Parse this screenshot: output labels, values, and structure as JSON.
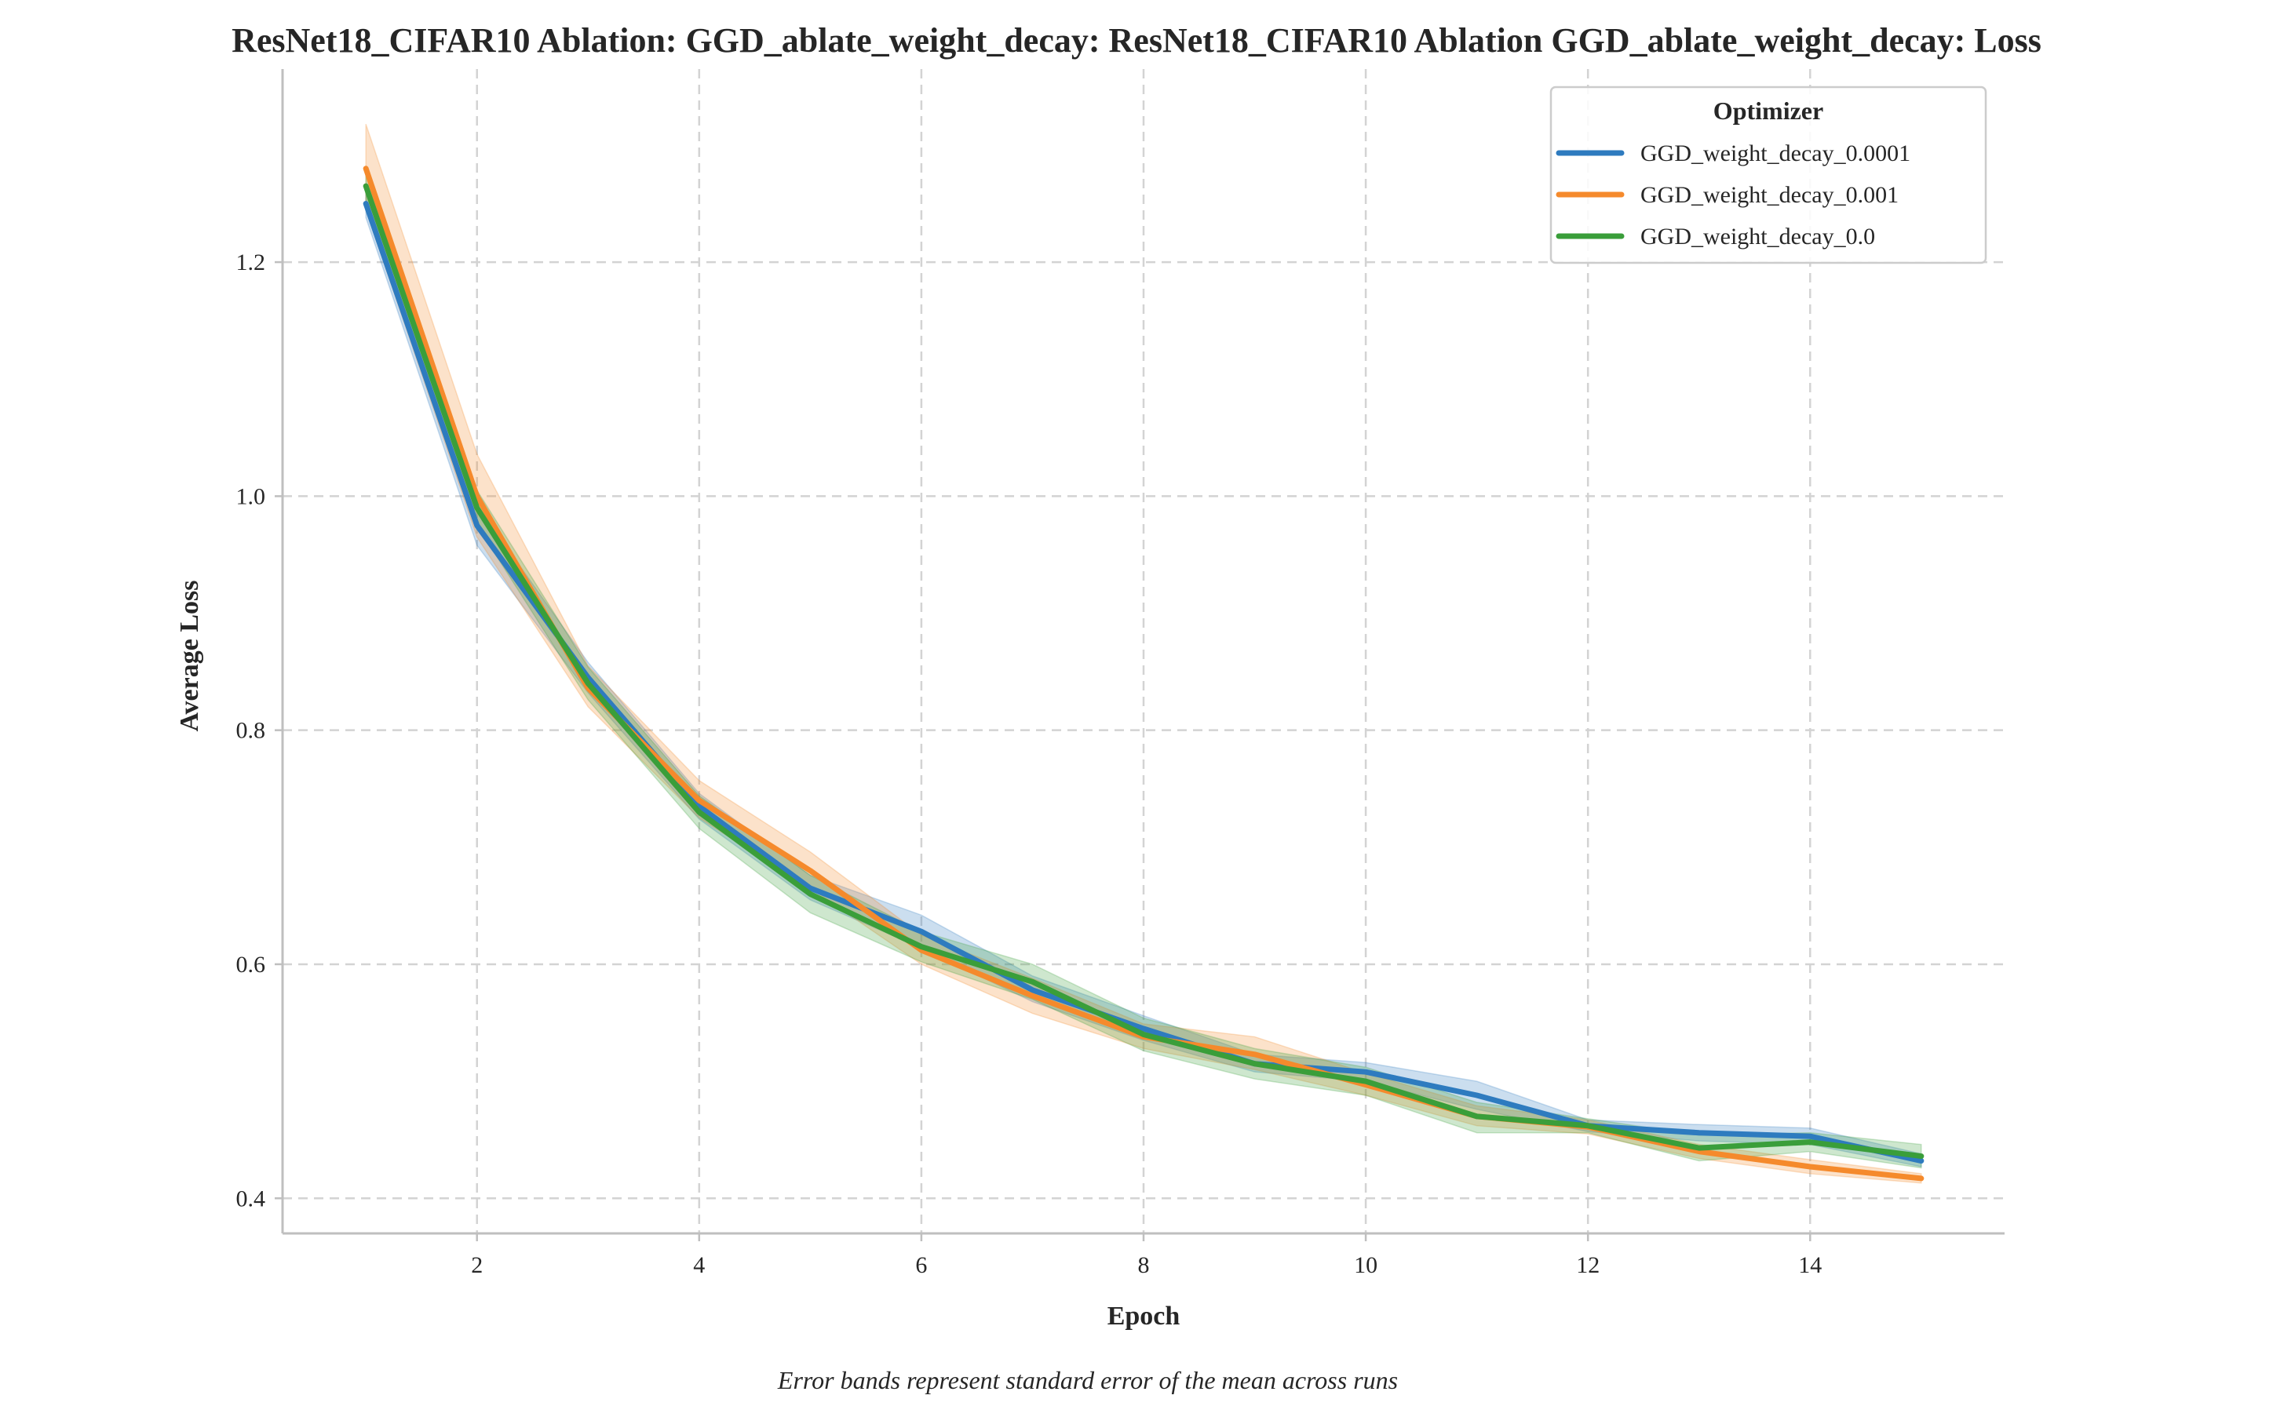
{
  "chart_data": {
    "type": "line",
    "title": "ResNet18_CIFAR10 Ablation: GGD_ablate_weight_decay: ResNet18_CIFAR10 Ablation GGD_ablate_weight_decay: Loss",
    "xlabel": "Epoch",
    "ylabel": "Average Loss",
    "caption": "Error bands represent standard error of the mean across runs",
    "xlim": [
      0.25,
      15.75
    ],
    "ylim": [
      0.37,
      1.365
    ],
    "xticks": [
      2,
      4,
      6,
      8,
      10,
      12,
      14
    ],
    "xtick_labels": [
      "2",
      "4",
      "6",
      "8",
      "10",
      "12",
      "14"
    ],
    "yticks": [
      0.4,
      0.6,
      0.8,
      1.0,
      1.2
    ],
    "ytick_labels": [
      "0.4",
      "0.6",
      "0.8",
      "1.0",
      "1.2"
    ],
    "grid": true,
    "legend": {
      "title": "Optimizer",
      "position": "top-right"
    },
    "x": [
      1,
      2,
      3,
      4,
      5,
      6,
      7,
      8,
      9,
      10,
      11,
      12,
      13,
      14,
      15
    ],
    "series": [
      {
        "name": "GGD_weight_decay_0.0001",
        "color": "#2e7bbf",
        "values": [
          1.25,
          0.975,
          0.845,
          0.735,
          0.665,
          0.628,
          0.578,
          0.545,
          0.515,
          0.508,
          0.488,
          0.462,
          0.456,
          0.453,
          0.432
        ],
        "lower": [
          1.238,
          0.958,
          0.832,
          0.724,
          0.655,
          0.614,
          0.568,
          0.535,
          0.508,
          0.5,
          0.476,
          0.457,
          0.449,
          0.446,
          0.427
        ],
        "upper": [
          1.262,
          0.992,
          0.858,
          0.746,
          0.676,
          0.642,
          0.59,
          0.556,
          0.523,
          0.516,
          0.5,
          0.467,
          0.463,
          0.46,
          0.438
        ]
      },
      {
        "name": "GGD_weight_decay_0.001",
        "color": "#f58a2c",
        "values": [
          1.28,
          1.0,
          0.836,
          0.74,
          0.68,
          0.612,
          0.573,
          0.538,
          0.523,
          0.497,
          0.47,
          0.461,
          0.44,
          0.427,
          0.417
        ],
        "lower": [
          1.245,
          0.965,
          0.82,
          0.725,
          0.665,
          0.6,
          0.558,
          0.528,
          0.51,
          0.488,
          0.462,
          0.455,
          0.434,
          0.421,
          0.413
        ],
        "upper": [
          1.318,
          1.036,
          0.855,
          0.757,
          0.696,
          0.625,
          0.588,
          0.549,
          0.538,
          0.507,
          0.479,
          0.467,
          0.446,
          0.433,
          0.421
        ]
      },
      {
        "name": "GGD_weight_decay_0.0",
        "color": "#3a9e3a",
        "values": [
          1.265,
          0.99,
          0.84,
          0.73,
          0.66,
          0.615,
          0.585,
          0.54,
          0.515,
          0.5,
          0.47,
          0.462,
          0.443,
          0.448,
          0.436
        ],
        "lower": [
          1.25,
          0.975,
          0.826,
          0.716,
          0.644,
          0.602,
          0.57,
          0.526,
          0.502,
          0.488,
          0.456,
          0.456,
          0.432,
          0.44,
          0.426
        ],
        "upper": [
          1.28,
          1.005,
          0.854,
          0.744,
          0.676,
          0.628,
          0.6,
          0.554,
          0.528,
          0.512,
          0.482,
          0.468,
          0.454,
          0.456,
          0.446
        ]
      }
    ]
  }
}
